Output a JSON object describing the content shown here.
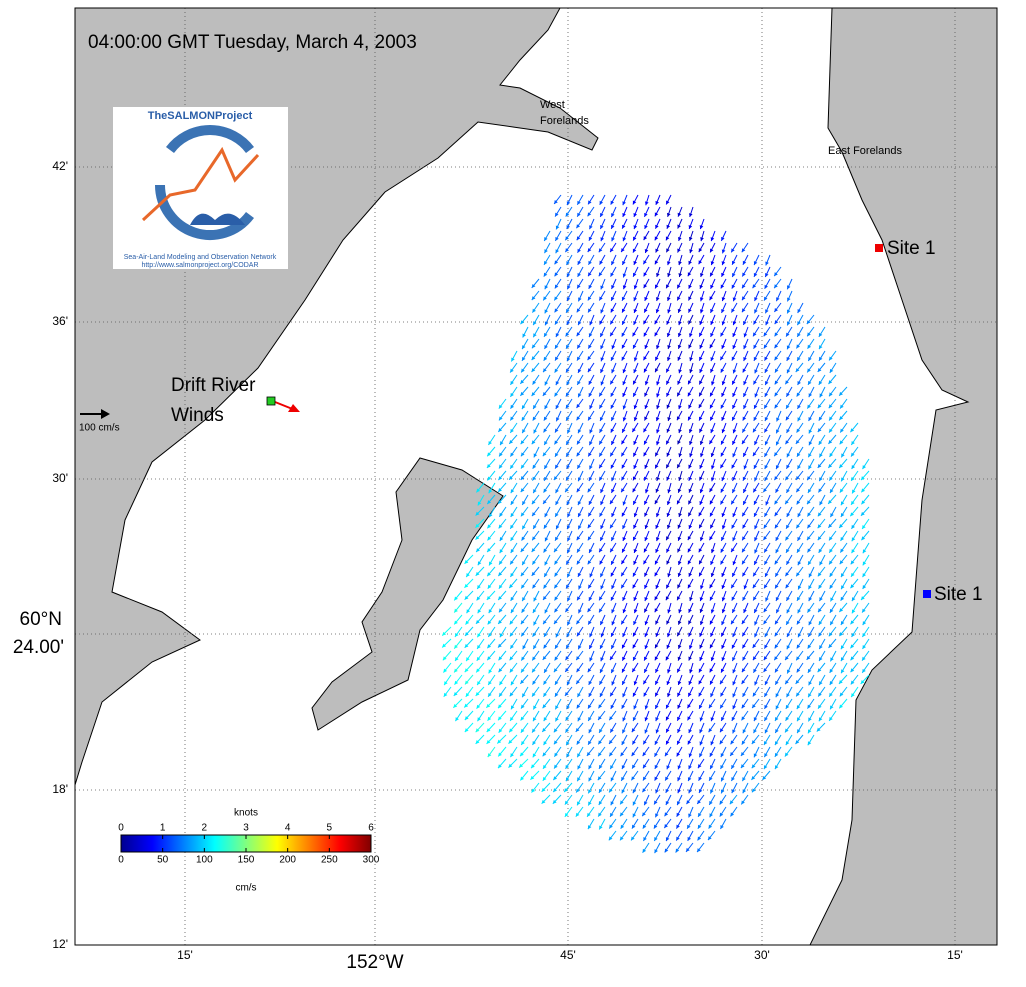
{
  "title": "04:00:00 GMT Tuesday, March 4, 2003",
  "places": {
    "west_forelands": [
      "West",
      "Forelands"
    ],
    "east_forelands": "East Forelands",
    "site_north": "Site 1",
    "site_south": "Site 1",
    "drift_river": [
      "Drift River",
      "Winds"
    ]
  },
  "scale_label": "100 cm/s",
  "logo": {
    "name": "TheSALMONProject",
    "network": "Sea-Air-Land Modeling and Observation Network",
    "url": "http://www.salmonproject.org/CODAR"
  },
  "lat_labels": [
    "42'",
    "36'",
    "30'",
    "18'",
    "12'"
  ],
  "lat_center": [
    "60°N",
    "24.00'"
  ],
  "lon_labels": [
    "15'",
    "45'",
    "30'",
    "15'"
  ],
  "lon_center": "152°W",
  "colorbar": {
    "top_title": "knots",
    "bottom_title": "cm/s",
    "knots_range": [
      0,
      6
    ],
    "knots_ticks": [
      0,
      1,
      2,
      3,
      4,
      5,
      6
    ],
    "cms_range": [
      0,
      300
    ],
    "cms_ticks": [
      0,
      50,
      100,
      150,
      200,
      250,
      300
    ]
  }
}
